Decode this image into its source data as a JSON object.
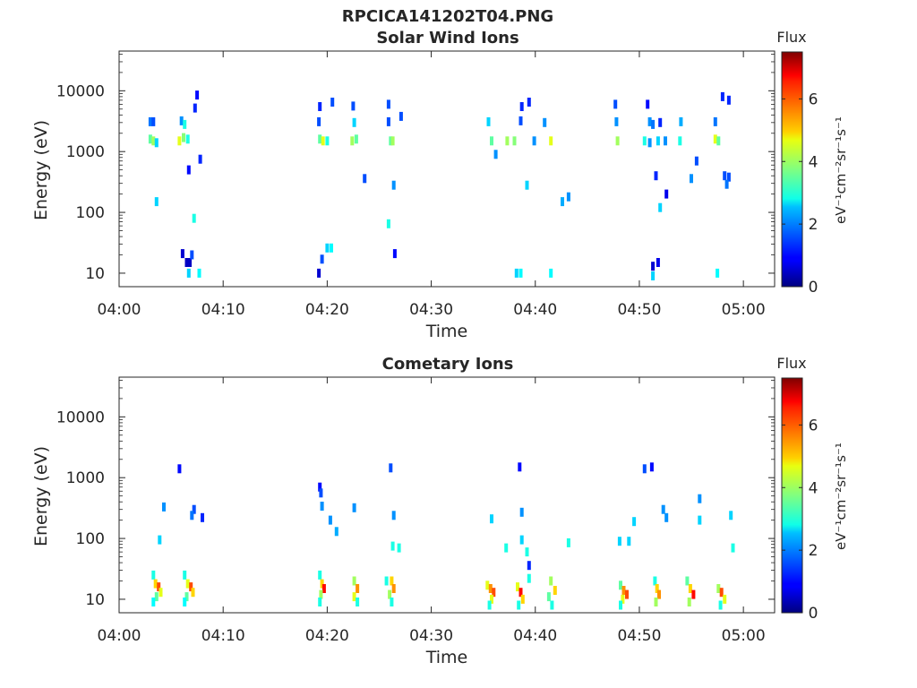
{
  "figure": {
    "title": "RPCICA141202T04.PNG"
  },
  "colorbar": {
    "label": "Flux",
    "unit_label": "eV⁻¹cm⁻²sr⁻¹s⁻¹",
    "ticks": [
      "0",
      "2",
      "4",
      "6"
    ],
    "range": [
      0,
      7.5
    ],
    "colormap": "jet"
  },
  "chart_data": [
    {
      "type": "heatmap",
      "title": "Solar Wind Ions",
      "xlabel": "Time",
      "ylabel": "Energy (eV)",
      "yscale": "log",
      "xlim": [
        "04:00",
        "05:03"
      ],
      "ylim": [
        6,
        45000
      ],
      "xticks": [
        "04:00",
        "04:10",
        "04:20",
        "04:30",
        "04:40",
        "04:50",
        "05:00"
      ],
      "yticks": [
        "10",
        "100",
        "1000",
        "10000"
      ],
      "cells": [
        {
          "t": "04:03.0",
          "e": 3100,
          "v": 1.8
        },
        {
          "t": "04:03.3",
          "e": 3100,
          "v": 1.5
        },
        {
          "t": "04:03.0",
          "e": 1600,
          "v": 3.5
        },
        {
          "t": "04:03.3",
          "e": 1500,
          "v": 4.0
        },
        {
          "t": "04:03.6",
          "e": 1400,
          "v": 2.5
        },
        {
          "t": "04:06.0",
          "e": 3200,
          "v": 2.0
        },
        {
          "t": "04:06.3",
          "e": 2800,
          "v": 3.0
        },
        {
          "t": "04:05.8",
          "e": 1500,
          "v": 4.5
        },
        {
          "t": "04:06.2",
          "e": 1700,
          "v": 3.8
        },
        {
          "t": "04:06.6",
          "e": 1600,
          "v": 3.0
        },
        {
          "t": "04:07.5",
          "e": 8500,
          "v": 1.0
        },
        {
          "t": "04:07.3",
          "e": 5200,
          "v": 1.2
        },
        {
          "t": "04:06.7",
          "e": 500,
          "v": 1.0
        },
        {
          "t": "04:07.8",
          "e": 750,
          "v": 1.2
        },
        {
          "t": "04:03.6",
          "e": 150,
          "v": 2.5
        },
        {
          "t": "04:07.2",
          "e": 80,
          "v": 3.0
        },
        {
          "t": "04:06.1",
          "e": 21,
          "v": 0.6
        },
        {
          "t": "04:06.5",
          "e": 15,
          "v": 0.5
        },
        {
          "t": "04:06.8",
          "e": 15,
          "v": 0.5
        },
        {
          "t": "04:07.0",
          "e": 20,
          "v": 1.5
        },
        {
          "t": "04:06.7",
          "e": 10,
          "v": 2.5
        },
        {
          "t": "04:07.7",
          "e": 10,
          "v": 2.8
        },
        {
          "t": "04:19.2",
          "e": 3100,
          "v": 1.5
        },
        {
          "t": "04:19.3",
          "e": 1600,
          "v": 3.5
        },
        {
          "t": "04:19.6",
          "e": 1500,
          "v": 4.5
        },
        {
          "t": "04:20.0",
          "e": 1500,
          "v": 3.0
        },
        {
          "t": "04:19.3",
          "e": 5500,
          "v": 1.2
        },
        {
          "t": "04:20.5",
          "e": 6500,
          "v": 1.5
        },
        {
          "t": "04:22.5",
          "e": 5600,
          "v": 1.5
        },
        {
          "t": "04:22.6",
          "e": 3000,
          "v": 2.5
        },
        {
          "t": "04:22.4",
          "e": 1500,
          "v": 4.0
        },
        {
          "t": "04:22.8",
          "e": 1600,
          "v": 3.5
        },
        {
          "t": "04:25.9",
          "e": 6000,
          "v": 1.5
        },
        {
          "t": "04:25.9",
          "e": 3100,
          "v": 1.5
        },
        {
          "t": "04:26.1",
          "e": 1500,
          "v": 3.5
        },
        {
          "t": "04:26.3",
          "e": 1500,
          "v": 4.0
        },
        {
          "t": "04:27.1",
          "e": 3800,
          "v": 1.5
        },
        {
          "t": "04:23.6",
          "e": 360,
          "v": 1.5
        },
        {
          "t": "04:26.4",
          "e": 280,
          "v": 2.0
        },
        {
          "t": "04:25.9",
          "e": 65,
          "v": 3.0
        },
        {
          "t": "04:20.0",
          "e": 26,
          "v": 2.5
        },
        {
          "t": "04:20.4",
          "e": 26,
          "v": 2.8
        },
        {
          "t": "04:19.5",
          "e": 17,
          "v": 1.5
        },
        {
          "t": "04:19.2",
          "e": 10,
          "v": 0.6
        },
        {
          "t": "04:26.5",
          "e": 21,
          "v": 1.0
        },
        {
          "t": "04:35.5",
          "e": 3100,
          "v": 2.5
        },
        {
          "t": "04:35.8",
          "e": 1500,
          "v": 3.5
        },
        {
          "t": "04:37.3",
          "e": 1500,
          "v": 4.0
        },
        {
          "t": "04:38.0",
          "e": 1500,
          "v": 3.8
        },
        {
          "t": "04:38.6",
          "e": 3200,
          "v": 1.5
        },
        {
          "t": "04:38.7",
          "e": 5500,
          "v": 1.2
        },
        {
          "t": "04:39.4",
          "e": 6500,
          "v": 1.2
        },
        {
          "t": "04:40.9",
          "e": 3000,
          "v": 2.0
        },
        {
          "t": "04:41.5",
          "e": 1500,
          "v": 4.5
        },
        {
          "t": "04:39.9",
          "e": 1500,
          "v": 2.0
        },
        {
          "t": "04:36.2",
          "e": 900,
          "v": 2.0
        },
        {
          "t": "04:39.2",
          "e": 280,
          "v": 2.5
        },
        {
          "t": "04:42.6",
          "e": 150,
          "v": 2.2
        },
        {
          "t": "04:43.2",
          "e": 180,
          "v": 2.0
        },
        {
          "t": "04:38.2",
          "e": 10,
          "v": 2.5
        },
        {
          "t": "04:38.6",
          "e": 10,
          "v": 2.8
        },
        {
          "t": "04:41.5",
          "e": 10,
          "v": 2.8
        },
        {
          "t": "04:47.8",
          "e": 3100,
          "v": 2.0
        },
        {
          "t": "04:47.9",
          "e": 1500,
          "v": 4.0
        },
        {
          "t": "04:47.7",
          "e": 6000,
          "v": 1.5
        },
        {
          "t": "04:51.0",
          "e": 3100,
          "v": 2.0
        },
        {
          "t": "04:51.3",
          "e": 2800,
          "v": 1.8
        },
        {
          "t": "04:52.0",
          "e": 3000,
          "v": 1.2
        },
        {
          "t": "04:50.5",
          "e": 1500,
          "v": 3.0
        },
        {
          "t": "04:51.0",
          "e": 1400,
          "v": 2.0
        },
        {
          "t": "04:51.8",
          "e": 1500,
          "v": 2.5
        },
        {
          "t": "04:52.5",
          "e": 1500,
          "v": 2.0
        },
        {
          "t": "04:50.8",
          "e": 6000,
          "v": 1.0
        },
        {
          "t": "04:51.6",
          "e": 400,
          "v": 1.2
        },
        {
          "t": "04:52.6",
          "e": 200,
          "v": 0.8
        },
        {
          "t": "04:52.0",
          "e": 120,
          "v": 2.5
        },
        {
          "t": "04:54.0",
          "e": 3100,
          "v": 2.2
        },
        {
          "t": "04:53.9",
          "e": 1500,
          "v": 3.0
        },
        {
          "t": "04:55.0",
          "e": 360,
          "v": 2.0
        },
        {
          "t": "04:57.3",
          "e": 3100,
          "v": 1.8
        },
        {
          "t": "04:57.3",
          "e": 1600,
          "v": 4.5
        },
        {
          "t": "04:57.6",
          "e": 1500,
          "v": 3.5
        },
        {
          "t": "04:55.5",
          "e": 700,
          "v": 1.5
        },
        {
          "t": "04:58.0",
          "e": 8000,
          "v": 1.2
        },
        {
          "t": "04:58.6",
          "e": 7000,
          "v": 1.2
        },
        {
          "t": "04:58.2",
          "e": 400,
          "v": 1.5
        },
        {
          "t": "04:58.6",
          "e": 380,
          "v": 1.5
        },
        {
          "t": "04:58.4",
          "e": 290,
          "v": 1.8
        },
        {
          "t": "04:51.3",
          "e": 13,
          "v": 0.6
        },
        {
          "t": "04:51.8",
          "e": 15,
          "v": 0.8
        },
        {
          "t": "04:51.3",
          "e": 9,
          "v": 2.5
        },
        {
          "t": "04:57.5",
          "e": 10,
          "v": 2.8
        }
      ]
    },
    {
      "type": "heatmap",
      "title": "Cometary Ions",
      "xlabel": "Time",
      "ylabel": "Energy (eV)",
      "yscale": "log",
      "xlim": [
        "04:00",
        "05:03"
      ],
      "ylim": [
        6,
        45000
      ],
      "xticks": [
        "04:00",
        "04:10",
        "04:20",
        "04:30",
        "04:40",
        "04:50",
        "05:00"
      ],
      "yticks": [
        "10",
        "100",
        "1000",
        "10000"
      ],
      "cells": [
        {
          "t": "04:05.8",
          "e": 1400,
          "v": 1.0
        },
        {
          "t": "04:04.3",
          "e": 330,
          "v": 2.0
        },
        {
          "t": "04:07.2",
          "e": 300,
          "v": 1.5
        },
        {
          "t": "04:08.0",
          "e": 220,
          "v": 1.2
        },
        {
          "t": "04:07.0",
          "e": 240,
          "v": 1.8
        },
        {
          "t": "04:03.9",
          "e": 95,
          "v": 2.5
        },
        {
          "t": "04:03.3",
          "e": 25,
          "v": 3.0
        },
        {
          "t": "04:03.5",
          "e": 18,
          "v": 5.0
        },
        {
          "t": "04:03.8",
          "e": 16,
          "v": 6.0
        },
        {
          "t": "04:04.0",
          "e": 13,
          "v": 4.5
        },
        {
          "t": "04:03.6",
          "e": 11,
          "v": 3.5
        },
        {
          "t": "04:03.3",
          "e": 9,
          "v": 2.8
        },
        {
          "t": "04:06.3",
          "e": 25,
          "v": 3.0
        },
        {
          "t": "04:06.6",
          "e": 18,
          "v": 4.5
        },
        {
          "t": "04:06.9",
          "e": 16,
          "v": 6.0
        },
        {
          "t": "04:07.1",
          "e": 13,
          "v": 5.0
        },
        {
          "t": "04:06.5",
          "e": 11,
          "v": 3.5
        },
        {
          "t": "04:06.3",
          "e": 9,
          "v": 2.8
        },
        {
          "t": "04:19.3",
          "e": 700,
          "v": 1.0
        },
        {
          "t": "04:19.4",
          "e": 560,
          "v": 1.5
        },
        {
          "t": "04:19.5",
          "e": 340,
          "v": 2.0
        },
        {
          "t": "04:20.3",
          "e": 200,
          "v": 2.0
        },
        {
          "t": "04:20.9",
          "e": 130,
          "v": 2.2
        },
        {
          "t": "04:22.6",
          "e": 320,
          "v": 2.0
        },
        {
          "t": "04:19.3",
          "e": 25,
          "v": 3.0
        },
        {
          "t": "04:19.5",
          "e": 18,
          "v": 5.0
        },
        {
          "t": "04:19.7",
          "e": 15,
          "v": 6.5
        },
        {
          "t": "04:19.4",
          "e": 12,
          "v": 4.0
        },
        {
          "t": "04:19.3",
          "e": 9,
          "v": 3.0
        },
        {
          "t": "04:22.6",
          "e": 20,
          "v": 4.0
        },
        {
          "t": "04:22.9",
          "e": 15,
          "v": 5.5
        },
        {
          "t": "04:22.6",
          "e": 11,
          "v": 4.5
        },
        {
          "t": "04:22.9",
          "e": 9,
          "v": 3.0
        },
        {
          "t": "04:25.7",
          "e": 20,
          "v": 3.0
        },
        {
          "t": "04:26.2",
          "e": 20,
          "v": 5.0
        },
        {
          "t": "04:26.4",
          "e": 15,
          "v": 5.5
        },
        {
          "t": "04:26.0",
          "e": 12,
          "v": 4.0
        },
        {
          "t": "04:26.2",
          "e": 9,
          "v": 3.0
        },
        {
          "t": "04:26.1",
          "e": 1450,
          "v": 1.5
        },
        {
          "t": "04:26.4",
          "e": 240,
          "v": 2.0
        },
        {
          "t": "04:26.3",
          "e": 75,
          "v": 3.0
        },
        {
          "t": "04:26.9",
          "e": 70,
          "v": 3.0
        },
        {
          "t": "04:35.8",
          "e": 210,
          "v": 2.5
        },
        {
          "t": "04:37.2",
          "e": 70,
          "v": 3.0
        },
        {
          "t": "04:38.5",
          "e": 1500,
          "v": 1.0
        },
        {
          "t": "04:38.7",
          "e": 270,
          "v": 2.0
        },
        {
          "t": "04:38.7",
          "e": 95,
          "v": 2.5
        },
        {
          "t": "04:39.2",
          "e": 60,
          "v": 3.0
        },
        {
          "t": "04:39.4",
          "e": 36,
          "v": 1.2
        },
        {
          "t": "04:43.2",
          "e": 85,
          "v": 3.0
        },
        {
          "t": "04:35.4",
          "e": 17,
          "v": 4.5
        },
        {
          "t": "04:35.7",
          "e": 15,
          "v": 5.5
        },
        {
          "t": "04:36.0",
          "e": 13,
          "v": 6.0
        },
        {
          "t": "04:35.8",
          "e": 10,
          "v": 4.5
        },
        {
          "t": "04:35.6",
          "e": 8,
          "v": 3.0
        },
        {
          "t": "04:38.3",
          "e": 16,
          "v": 4.5
        },
        {
          "t": "04:38.6",
          "e": 13,
          "v": 6.5
        },
        {
          "t": "04:38.8",
          "e": 10,
          "v": 5.0
        },
        {
          "t": "04:38.4",
          "e": 8,
          "v": 3.0
        },
        {
          "t": "04:39.4",
          "e": 22,
          "v": 3.0
        },
        {
          "t": "04:41.5",
          "e": 20,
          "v": 4.0
        },
        {
          "t": "04:41.9",
          "e": 14,
          "v": 5.0
        },
        {
          "t": "04:41.3",
          "e": 11,
          "v": 3.5
        },
        {
          "t": "04:41.6",
          "e": 8,
          "v": 3.0
        },
        {
          "t": "04:50.5",
          "e": 1400,
          "v": 1.5
        },
        {
          "t": "04:51.2",
          "e": 1500,
          "v": 1.0
        },
        {
          "t": "04:52.3",
          "e": 300,
          "v": 2.0
        },
        {
          "t": "04:52.6",
          "e": 220,
          "v": 2.0
        },
        {
          "t": "04:55.8",
          "e": 450,
          "v": 2.0
        },
        {
          "t": "04:55.8",
          "e": 200,
          "v": 2.5
        },
        {
          "t": "04:48.1",
          "e": 90,
          "v": 2.5
        },
        {
          "t": "04:49.0",
          "e": 90,
          "v": 2.5
        },
        {
          "t": "04:49.5",
          "e": 190,
          "v": 2.5
        },
        {
          "t": "04:58.8",
          "e": 240,
          "v": 2.5
        },
        {
          "t": "04:59.0",
          "e": 70,
          "v": 3.0
        },
        {
          "t": "04:48.2",
          "e": 17,
          "v": 3.5
        },
        {
          "t": "04:48.5",
          "e": 14,
          "v": 5.5
        },
        {
          "t": "04:48.8",
          "e": 12,
          "v": 6.0
        },
        {
          "t": "04:48.4",
          "e": 10,
          "v": 4.5
        },
        {
          "t": "04:48.2",
          "e": 8,
          "v": 3.0
        },
        {
          "t": "04:51.5",
          "e": 20,
          "v": 3.0
        },
        {
          "t": "04:51.7",
          "e": 15,
          "v": 5.0
        },
        {
          "t": "04:51.9",
          "e": 12,
          "v": 5.5
        },
        {
          "t": "04:51.6",
          "e": 9,
          "v": 4.0
        },
        {
          "t": "04:54.6",
          "e": 20,
          "v": 3.5
        },
        {
          "t": "04:54.9",
          "e": 15,
          "v": 5.0
        },
        {
          "t": "04:55.2",
          "e": 12,
          "v": 6.5
        },
        {
          "t": "04:54.8",
          "e": 9,
          "v": 4.0
        },
        {
          "t": "04:57.6",
          "e": 15,
          "v": 4.0
        },
        {
          "t": "04:57.9",
          "e": 13,
          "v": 6.0
        },
        {
          "t": "04:58.2",
          "e": 10,
          "v": 4.5
        },
        {
          "t": "04:57.8",
          "e": 8,
          "v": 3.0
        }
      ]
    }
  ]
}
